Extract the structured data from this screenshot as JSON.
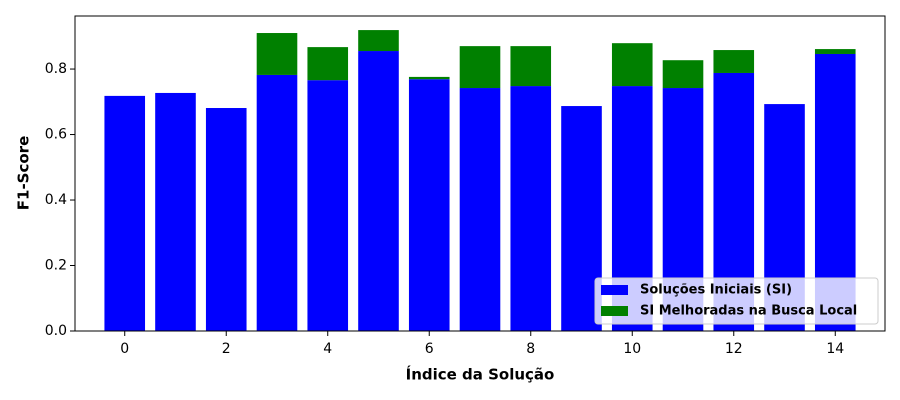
{
  "chart_data": {
    "type": "bar",
    "x_label": "Índice da Solução",
    "y_label": "F1-Score",
    "x": [
      0,
      1,
      2,
      3,
      4,
      5,
      6,
      7,
      8,
      9,
      10,
      11,
      12,
      13,
      14
    ],
    "series": [
      {
        "name": "Soluções Iniciais (SI)",
        "color": "#0000ff",
        "values": [
          0.718,
          0.727,
          0.681,
          0.782,
          0.766,
          0.855,
          0.769,
          0.742,
          0.748,
          0.687,
          0.748,
          0.742,
          0.788,
          0.693,
          0.846
        ]
      },
      {
        "name": "SI Melhoradas na Busca Local",
        "color": "#008000",
        "values": [
          0,
          0,
          0,
          0.128,
          0.101,
          0.064,
          0.007,
          0.128,
          0.122,
          0,
          0.131,
          0.085,
          0.07,
          0,
          0.015
        ]
      }
    ],
    "stacked": true,
    "xlim": [
      -0.98,
      14.98
    ],
    "xticks": [
      0,
      2,
      4,
      6,
      8,
      10,
      12,
      14
    ],
    "ylim": [
      0,
      0.962
    ],
    "yticks": [
      {
        "value": 0,
        "label": "0.0"
      },
      {
        "value": 0.2,
        "label": "0.2"
      },
      {
        "value": 0.4,
        "label": "0.4"
      },
      {
        "value": 0.6,
        "label": "0.6"
      },
      {
        "value": 0.8,
        "label": "0.8"
      }
    ],
    "legend": "lower right"
  }
}
